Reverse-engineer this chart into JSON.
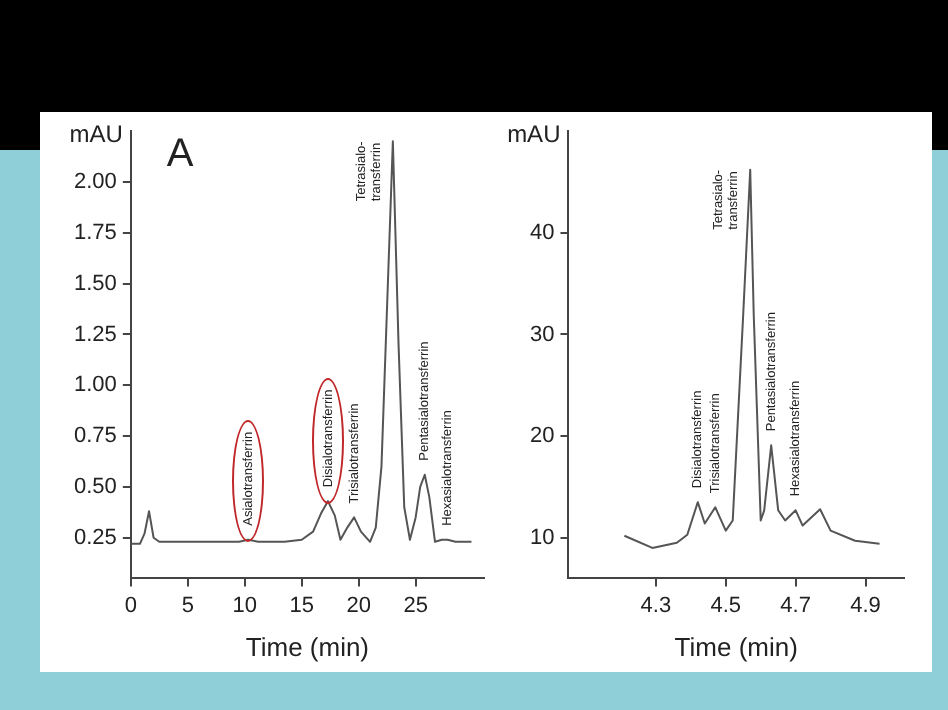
{
  "chart_data": [
    {
      "type": "line",
      "xlabel": "Time (min)",
      "ylabel": "mAU",
      "xlim": [
        0,
        31
      ],
      "ylim": [
        0.05,
        2.25
      ],
      "xticks": [
        0,
        5,
        10,
        15,
        20,
        25
      ],
      "yticks": [
        {
          "value": 0.25,
          "label": "0.25"
        },
        {
          "value": 0.5,
          "label": "0.50"
        },
        {
          "value": 0.75,
          "label": "0.75"
        },
        {
          "value": 1,
          "label": "1.00"
        },
        {
          "value": 1.25,
          "label": "1.25"
        },
        {
          "value": 1.5,
          "label": "1.50"
        },
        {
          "value": 1.75,
          "label": "1.75"
        },
        {
          "value": 2,
          "label": "2.00"
        }
      ],
      "grid": false,
      "legend": false,
      "marker": "none",
      "line_style": "solid",
      "series": [
        {
          "color": "#555555",
          "x": [
            0,
            0.8,
            1.2,
            1.6,
            2.0,
            2.5,
            5,
            8,
            9.5,
            10.3,
            11.2,
            13.5,
            15,
            16,
            16.7,
            17.3,
            17.9,
            18.4,
            19.0,
            19.6,
            20.2,
            21.0,
            21.5,
            22.0,
            22.5,
            23.0,
            23.5,
            24.0,
            24.5,
            25.0,
            25.4,
            25.8,
            26.2,
            26.7,
            27.3,
            27.8,
            28.5,
            29.9
          ],
          "values": [
            0.22,
            0.22,
            0.27,
            0.38,
            0.25,
            0.23,
            0.23,
            0.23,
            0.23,
            0.24,
            0.23,
            0.23,
            0.24,
            0.28,
            0.37,
            0.43,
            0.36,
            0.24,
            0.3,
            0.35,
            0.28,
            0.23,
            0.3,
            0.6,
            1.4,
            2.2,
            1.2,
            0.4,
            0.24,
            0.35,
            0.5,
            0.56,
            0.45,
            0.23,
            0.24,
            0.24,
            0.23,
            0.23
          ]
        }
      ],
      "annotations": [
        "A",
        {
          "text": "Asialotransferrin",
          "x": 10.3,
          "y": 0.24
        },
        {
          "text": "Disialotransferrin",
          "x": 17.3,
          "y": 0.43
        },
        {
          "text": "Trisialotransferrin",
          "x": 19.6,
          "y": 0.35
        },
        {
          "text": "Tetrasialo-\ntransferrin",
          "x": 23.0,
          "y": 2.2
        },
        {
          "text": "Pentasialotransferrin",
          "x": 25.8,
          "y": 0.56
        },
        {
          "text": "Hexasialotransferrin",
          "x": 27.8,
          "y": 0.24
        }
      ]
    },
    {
      "type": "line",
      "xlabel": "Time (min)",
      "ylabel": "mAU",
      "xlim": [
        4.05,
        5.01
      ],
      "ylim": [
        6,
        50
      ],
      "xticks": [
        4.3,
        4.5,
        4.7,
        4.9
      ],
      "yticks": [
        10,
        20,
        30,
        40
      ],
      "grid": false,
      "legend": false,
      "marker": "none",
      "line_style": "solid",
      "series": [
        {
          "color": "#555555",
          "x": [
            4.21,
            4.29,
            4.36,
            4.39,
            4.42,
            4.44,
            4.47,
            4.5,
            4.52,
            4.55,
            4.57,
            4.58,
            4.6,
            4.61,
            4.63,
            4.65,
            4.67,
            4.7,
            4.72,
            4.77,
            4.8,
            4.87,
            4.94
          ],
          "values": [
            10.2,
            9.0,
            9.5,
            10.3,
            13.5,
            11.4,
            13.0,
            10.7,
            11.7,
            32,
            46.2,
            32,
            11.7,
            12.7,
            19.1,
            12.7,
            11.7,
            12.7,
            11.2,
            12.8,
            10.7,
            9.7,
            9.4
          ]
        }
      ],
      "annotations": [
        {
          "text": "Disialotransferrin",
          "x": 4.42,
          "y": 13.5
        },
        {
          "text": "Trisialotransferrin",
          "x": 4.47,
          "y": 13.0
        },
        {
          "text": "Tetrasialo-\ntransferrin",
          "x": 4.57,
          "y": 46.2
        },
        {
          "text": "Pentasialotransferrin",
          "x": 4.63,
          "y": 19.1
        },
        {
          "text": "Hexasialotransferrin",
          "x": 4.7,
          "y": 12.7
        }
      ]
    }
  ]
}
